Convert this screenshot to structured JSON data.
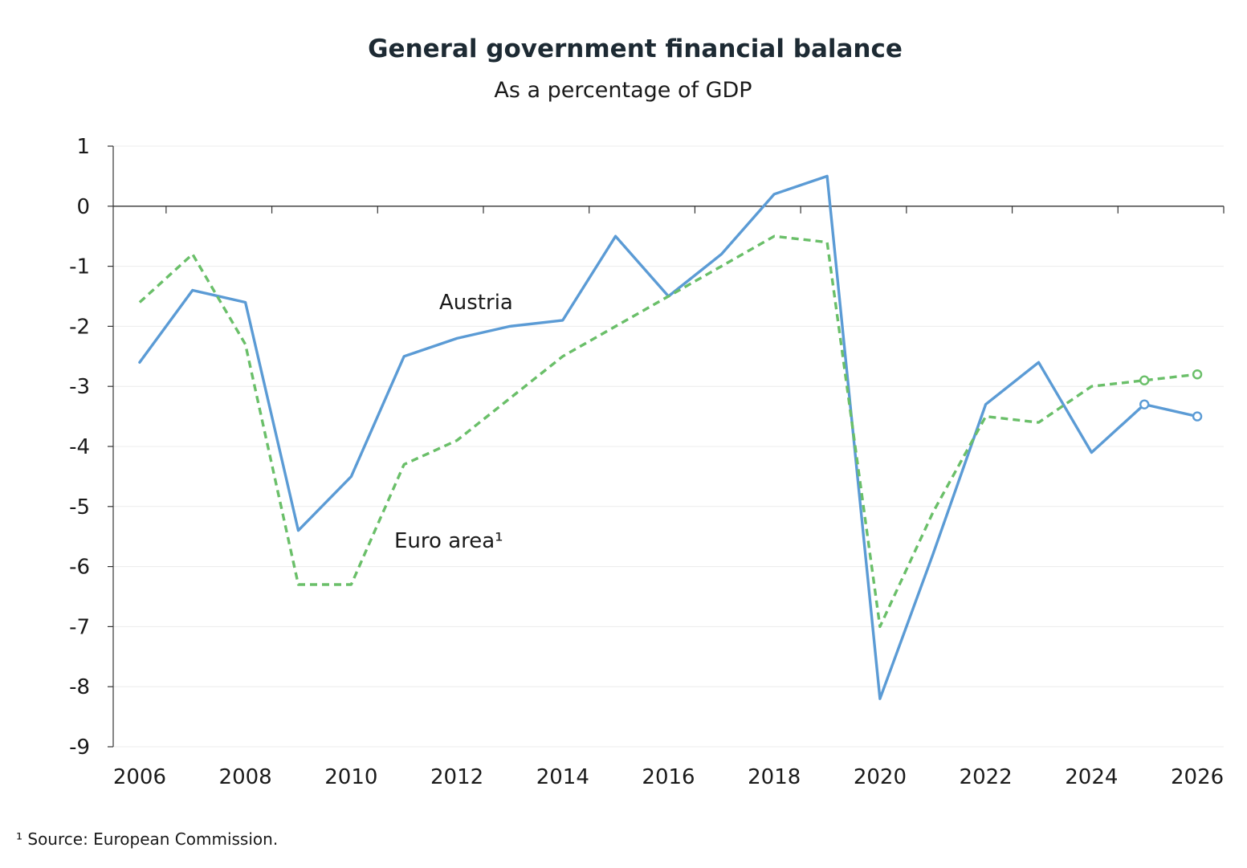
{
  "chart_data": {
    "type": "line",
    "title": "General government financial balance",
    "subtitle": "As a percentage of GDP",
    "xlabel": "",
    "ylabel": "",
    "x": [
      2006,
      2007,
      2008,
      2009,
      2010,
      2011,
      2012,
      2013,
      2014,
      2015,
      2016,
      2017,
      2018,
      2019,
      2020,
      2021,
      2022,
      2023,
      2024,
      2025,
      2026
    ],
    "x_ticks": [
      "2006",
      "2008",
      "2010",
      "2012",
      "2014",
      "2016",
      "2018",
      "2020",
      "2022",
      "2024",
      "2026"
    ],
    "xlim": [
      2005.5,
      2026.5
    ],
    "y_ticks": [
      "1",
      "0",
      "-1",
      "-2",
      "-3",
      "-4",
      "-5",
      "-6",
      "-7",
      "-8",
      "-9"
    ],
    "ylim": [
      -9,
      1
    ],
    "grid": true,
    "legend": "inline labels",
    "forecast_from": 2025,
    "series": [
      {
        "name": "Austria",
        "label_text": "Austria",
        "color": "#5b9bd5",
        "style": "solid",
        "values": [
          -2.6,
          -1.4,
          -1.6,
          -5.4,
          -4.5,
          -2.5,
          -2.2,
          -2.0,
          -1.9,
          -0.5,
          -1.5,
          -0.8,
          0.2,
          0.5,
          -8.2,
          -5.8,
          -3.3,
          -2.6,
          -4.1,
          -3.3,
          -3.5
        ]
      },
      {
        "name": "Euro area",
        "label_text": "Euro area¹",
        "color": "#6abf69",
        "style": "dashed",
        "values": [
          -1.6,
          -0.8,
          -2.3,
          -6.3,
          -6.3,
          -4.3,
          -3.9,
          -3.2,
          -2.5,
          -2.0,
          -1.5,
          -1.0,
          -0.5,
          -0.6,
          -7.0,
          -5.1,
          -3.5,
          -3.6,
          -3.0,
          -2.9,
          -2.8
        ]
      }
    ],
    "footnote": "¹ Source: European Commission."
  }
}
